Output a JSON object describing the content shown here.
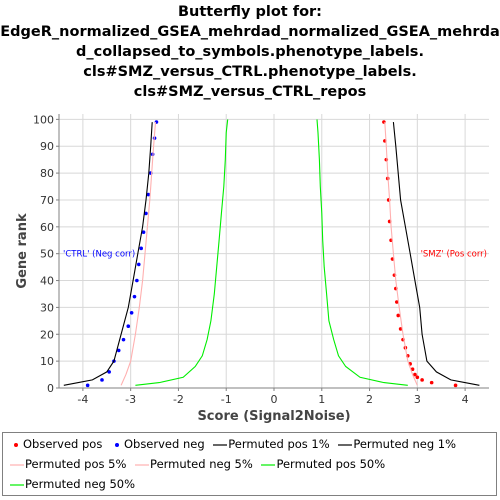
{
  "title_lines": [
    "Butterfly plot for:",
    "EdgeR_normalized_GSEA_mehrdad_normalized_GSEA_mehrda",
    "d_collapsed_to_symbols.phenotype_labels.",
    "cls#SMZ_versus_CTRL.phenotype_labels.",
    "cls#SMZ_versus_CTRL_repos"
  ],
  "colors": {
    "observed_pos": "#ff0000",
    "observed_neg": "#0000ff",
    "permuted_1": "#000000",
    "permuted_5": "#ffb0b0",
    "permuted_50": "#00ee00"
  },
  "chart_data": {
    "type": "line",
    "xlabel": "Score (Signal2Noise)",
    "ylabel": "Gene rank",
    "xlim": [
      -4.5,
      4.5
    ],
    "ylim": [
      0,
      102
    ],
    "xticks": [
      -4,
      -3,
      -2,
      -1,
      0,
      1,
      2,
      3,
      4
    ],
    "yticks": [
      0,
      10,
      20,
      30,
      40,
      50,
      60,
      70,
      80,
      90,
      100
    ],
    "grid": true,
    "annotations": {
      "neg": "'CTRL' (Neg corr)",
      "pos": "'SMZ' (Pos corr)"
    },
    "legend": [
      {
        "name": "Observed pos",
        "kind": "dot",
        "color_key": "observed_pos"
      },
      {
        "name": "Observed neg",
        "kind": "dot",
        "color_key": "observed_neg"
      },
      {
        "name": "Permuted pos 1%",
        "kind": "line",
        "color_key": "permuted_1"
      },
      {
        "name": "Permuted neg 1%",
        "kind": "line",
        "color_key": "permuted_1"
      },
      {
        "name": "Permuted pos 5%",
        "kind": "line",
        "color_key": "permuted_5"
      },
      {
        "name": "Permuted neg 5%",
        "kind": "line",
        "color_key": "permuted_5"
      },
      {
        "name": "Permuted pos 50%",
        "kind": "line",
        "color_key": "permuted_50"
      },
      {
        "name": "Permuted neg 50%",
        "kind": "line",
        "color_key": "permuted_50"
      }
    ],
    "series": [
      {
        "name": "Observed pos",
        "style": "dot",
        "color_key": "observed_pos",
        "points": [
          [
            3.8,
            1
          ],
          [
            3.3,
            2
          ],
          [
            3.1,
            3
          ],
          [
            3.0,
            4
          ],
          [
            2.95,
            5
          ],
          [
            2.9,
            7
          ],
          [
            2.85,
            9
          ],
          [
            2.8,
            12
          ],
          [
            2.75,
            15
          ],
          [
            2.7,
            18
          ],
          [
            2.65,
            22
          ],
          [
            2.6,
            27
          ],
          [
            2.57,
            32
          ],
          [
            2.55,
            37
          ],
          [
            2.52,
            42
          ],
          [
            2.48,
            48
          ],
          [
            2.45,
            55
          ],
          [
            2.42,
            62
          ],
          [
            2.4,
            70
          ],
          [
            2.38,
            78
          ],
          [
            2.35,
            85
          ],
          [
            2.32,
            92
          ],
          [
            2.3,
            99
          ]
        ]
      },
      {
        "name": "Observed neg",
        "style": "dot",
        "color_key": "observed_neg",
        "points": [
          [
            -3.9,
            1
          ],
          [
            -3.6,
            3
          ],
          [
            -3.45,
            6
          ],
          [
            -3.35,
            10
          ],
          [
            -3.25,
            14
          ],
          [
            -3.15,
            18
          ],
          [
            -3.05,
            23
          ],
          [
            -2.98,
            28
          ],
          [
            -2.92,
            34
          ],
          [
            -2.87,
            40
          ],
          [
            -2.83,
            46
          ],
          [
            -2.78,
            52
          ],
          [
            -2.73,
            58
          ],
          [
            -2.68,
            65
          ],
          [
            -2.63,
            72
          ],
          [
            -2.58,
            80
          ],
          [
            -2.54,
            87
          ],
          [
            -2.5,
            93
          ],
          [
            -2.46,
            99
          ]
        ]
      },
      {
        "name": "Permuted pos 1%",
        "style": "line",
        "color_key": "permuted_1",
        "points": [
          [
            4.3,
            1
          ],
          [
            3.7,
            3
          ],
          [
            3.4,
            6
          ],
          [
            3.2,
            10
          ],
          [
            3.15,
            15
          ],
          [
            3.1,
            20
          ],
          [
            3.05,
            30
          ],
          [
            2.95,
            40
          ],
          [
            2.85,
            50
          ],
          [
            2.75,
            60
          ],
          [
            2.65,
            70
          ],
          [
            2.6,
            80
          ],
          [
            2.55,
            90
          ],
          [
            2.5,
            99
          ]
        ]
      },
      {
        "name": "Permuted neg 1%",
        "style": "line",
        "color_key": "permuted_1",
        "points": [
          [
            -4.4,
            1
          ],
          [
            -3.8,
            3
          ],
          [
            -3.5,
            6
          ],
          [
            -3.35,
            10
          ],
          [
            -3.2,
            20
          ],
          [
            -3.05,
            30
          ],
          [
            -2.95,
            40
          ],
          [
            -2.85,
            50
          ],
          [
            -2.75,
            60
          ],
          [
            -2.68,
            70
          ],
          [
            -2.62,
            80
          ],
          [
            -2.58,
            90
          ],
          [
            -2.55,
            99
          ]
        ]
      },
      {
        "name": "Permuted pos 5%",
        "style": "line",
        "color_key": "permuted_5",
        "points": [
          [
            3.0,
            1
          ],
          [
            2.9,
            5
          ],
          [
            2.8,
            10
          ],
          [
            2.7,
            20
          ],
          [
            2.62,
            30
          ],
          [
            2.55,
            40
          ],
          [
            2.5,
            50
          ],
          [
            2.45,
            60
          ],
          [
            2.42,
            70
          ],
          [
            2.38,
            80
          ],
          [
            2.35,
            90
          ],
          [
            2.32,
            99
          ]
        ]
      },
      {
        "name": "Permuted neg 5%",
        "style": "line",
        "color_key": "permuted_5",
        "points": [
          [
            -3.2,
            1
          ],
          [
            -3.1,
            5
          ],
          [
            -3.0,
            10
          ],
          [
            -2.9,
            20
          ],
          [
            -2.82,
            30
          ],
          [
            -2.75,
            40
          ],
          [
            -2.7,
            50
          ],
          [
            -2.65,
            60
          ],
          [
            -2.6,
            70
          ],
          [
            -2.56,
            80
          ],
          [
            -2.52,
            90
          ],
          [
            -2.48,
            99
          ]
        ]
      },
      {
        "name": "Permuted pos 50%",
        "style": "line",
        "color_key": "permuted_50",
        "points": [
          [
            2.8,
            1
          ],
          [
            2.3,
            2
          ],
          [
            1.8,
            4
          ],
          [
            1.5,
            8
          ],
          [
            1.35,
            12
          ],
          [
            1.25,
            18
          ],
          [
            1.15,
            25
          ],
          [
            1.1,
            35
          ],
          [
            1.05,
            45
          ],
          [
            1.02,
            55
          ],
          [
            1.0,
            65
          ],
          [
            0.97,
            75
          ],
          [
            0.95,
            85
          ],
          [
            0.92,
            95
          ],
          [
            0.9,
            100
          ]
        ]
      },
      {
        "name": "Permuted neg 50%",
        "style": "line",
        "color_key": "permuted_50",
        "points": [
          [
            -2.9,
            1
          ],
          [
            -2.4,
            2
          ],
          [
            -1.9,
            4
          ],
          [
            -1.65,
            8
          ],
          [
            -1.5,
            12
          ],
          [
            -1.4,
            18
          ],
          [
            -1.32,
            25
          ],
          [
            -1.25,
            35
          ],
          [
            -1.2,
            45
          ],
          [
            -1.15,
            55
          ],
          [
            -1.1,
            65
          ],
          [
            -1.05,
            75
          ],
          [
            -1.02,
            85
          ],
          [
            -1.0,
            95
          ],
          [
            -0.97,
            100
          ]
        ]
      }
    ]
  }
}
